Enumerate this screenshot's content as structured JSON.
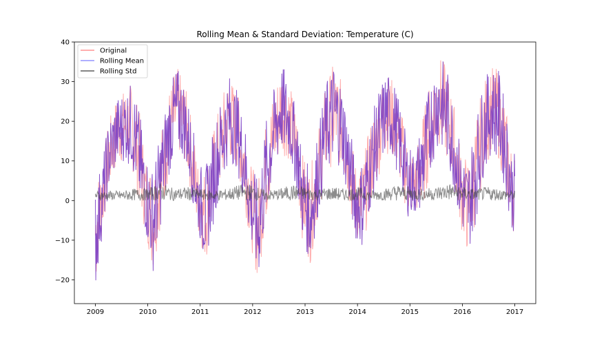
{
  "chart_data": {
    "type": "line",
    "title": "Rolling Mean & Standard Deviation: Temperature (C)",
    "xlabel": "",
    "ylabel": "",
    "xlim": [
      2008.6,
      2017.4
    ],
    "ylim": [
      -26,
      40
    ],
    "x_ticks": [
      2009,
      2010,
      2011,
      2012,
      2013,
      2014,
      2015,
      2016,
      2017
    ],
    "x_tick_labels": [
      "2009",
      "2010",
      "2011",
      "2012",
      "2013",
      "2014",
      "2015",
      "2016",
      "2017"
    ],
    "y_ticks": [
      -20,
      -10,
      0,
      10,
      20,
      30,
      40
    ],
    "y_tick_labels": [
      "−20",
      "−10",
      "0",
      "10",
      "20",
      "30",
      "40"
    ],
    "grid": false,
    "legend": {
      "position": "top-left",
      "entries": [
        "Original",
        "Rolling Mean",
        "Rolling Std"
      ]
    },
    "series": [
      {
        "name": "Original",
        "color": "#ff6666",
        "x": [
          2009.0,
          2009.12,
          2009.25,
          2009.4,
          2009.55,
          2009.7,
          2009.85,
          2009.95,
          2010.1,
          2010.25,
          2010.4,
          2010.55,
          2010.7,
          2010.85,
          2010.95,
          2011.1,
          2011.25,
          2011.4,
          2011.55,
          2011.7,
          2011.85,
          2011.95,
          2012.1,
          2012.25,
          2012.4,
          2012.55,
          2012.7,
          2012.85,
          2012.95,
          2013.1,
          2013.25,
          2013.4,
          2013.55,
          2013.7,
          2013.85,
          2013.95,
          2014.1,
          2014.25,
          2014.4,
          2014.55,
          2014.7,
          2014.85,
          2014.95,
          2015.1,
          2015.25,
          2015.4,
          2015.55,
          2015.7,
          2015.85,
          2015.95,
          2016.1,
          2016.25,
          2016.4,
          2016.55,
          2016.7,
          2016.85,
          2016.95
        ],
        "hi": [
          6,
          9,
          20,
          26,
          28,
          30,
          22,
          12,
          8,
          18,
          28,
          34,
          30,
          20,
          10,
          8,
          18,
          26,
          32,
          28,
          20,
          10,
          5,
          20,
          28,
          35,
          30,
          22,
          12,
          8,
          18,
          30,
          35,
          30,
          20,
          10,
          10,
          20,
          28,
          33,
          30,
          22,
          15,
          12,
          22,
          31,
          37,
          34,
          24,
          15,
          10,
          20,
          30,
          34,
          33,
          22,
          12
        ],
        "lo": [
          -23,
          -10,
          2,
          8,
          10,
          8,
          -2,
          -8,
          -18,
          -6,
          6,
          12,
          10,
          0,
          -8,
          -16,
          -6,
          4,
          10,
          8,
          -2,
          -10,
          -21,
          -6,
          6,
          12,
          10,
          2,
          -10,
          -16,
          -4,
          6,
          10,
          8,
          -2,
          -10,
          -12,
          -2,
          6,
          12,
          10,
          2,
          -4,
          -4,
          -2,
          8,
          14,
          10,
          2,
          -6,
          -14,
          -6,
          6,
          12,
          10,
          0,
          -8
        ]
      },
      {
        "name": "Rolling Mean",
        "color": "#7b3fc4",
        "x": [
          2009.0,
          2009.12,
          2009.25,
          2009.4,
          2009.55,
          2009.7,
          2009.85,
          2009.95,
          2010.1,
          2010.25,
          2010.4,
          2010.55,
          2010.7,
          2010.85,
          2010.95,
          2011.1,
          2011.25,
          2011.4,
          2011.55,
          2011.7,
          2011.85,
          2011.95,
          2012.1,
          2012.25,
          2012.4,
          2012.55,
          2012.7,
          2012.85,
          2012.95,
          2013.1,
          2013.25,
          2013.4,
          2013.55,
          2013.7,
          2013.85,
          2013.95,
          2014.1,
          2014.25,
          2014.4,
          2014.55,
          2014.7,
          2014.85,
          2014.95,
          2015.1,
          2015.25,
          2015.4,
          2015.55,
          2015.7,
          2015.85,
          2015.95,
          2016.1,
          2016.25,
          2016.4,
          2016.55,
          2016.7,
          2016.85,
          2016.95
        ],
        "hi": [
          6,
          9,
          20,
          26,
          28,
          30,
          22,
          12,
          8,
          18,
          28,
          34,
          30,
          20,
          10,
          8,
          18,
          26,
          32,
          28,
          20,
          10,
          5,
          20,
          28,
          35,
          30,
          22,
          12,
          8,
          18,
          30,
          35,
          30,
          20,
          10,
          10,
          20,
          28,
          33,
          30,
          22,
          15,
          12,
          22,
          31,
          37,
          34,
          24,
          15,
          10,
          20,
          30,
          34,
          33,
          22,
          12
        ],
        "lo": [
          -23,
          -10,
          2,
          8,
          10,
          8,
          -2,
          -8,
          -18,
          -6,
          6,
          12,
          10,
          0,
          -8,
          -16,
          -6,
          4,
          10,
          8,
          -2,
          -10,
          -21,
          -6,
          6,
          12,
          10,
          2,
          -10,
          -16,
          -4,
          6,
          10,
          8,
          -2,
          -10,
          -12,
          -2,
          6,
          12,
          10,
          2,
          -4,
          -4,
          -2,
          8,
          14,
          10,
          2,
          -6,
          -14,
          -6,
          6,
          12,
          10,
          0,
          -8
        ]
      },
      {
        "name": "Rolling Std",
        "color": "#404040",
        "x": [
          2009.0,
          2009.25,
          2009.5,
          2009.75,
          2010.0,
          2010.25,
          2010.5,
          2010.75,
          2011.0,
          2011.25,
          2011.5,
          2011.75,
          2012.0,
          2012.25,
          2012.5,
          2012.75,
          2013.0,
          2013.25,
          2013.5,
          2013.75,
          2014.0,
          2014.25,
          2014.5,
          2014.75,
          2015.0,
          2015.25,
          2015.5,
          2015.75,
          2016.0,
          2016.25,
          2016.5,
          2016.75,
          2017.0
        ],
        "hi": [
          2.5,
          2.5,
          2.5,
          3,
          3,
          4.5,
          3,
          3.5,
          3,
          2.5,
          3,
          4,
          4,
          2.5,
          3,
          4,
          3.5,
          3,
          3.5,
          3,
          3.5,
          2.5,
          3,
          4,
          3.5,
          3,
          3.5,
          4.5,
          3.5,
          3,
          3.5,
          3,
          2.5
        ],
        "lo": [
          0,
          0,
          0,
          0,
          0,
          0,
          0,
          0,
          0,
          0,
          0,
          0,
          0,
          0,
          0,
          0,
          0,
          0,
          0,
          0,
          0,
          0,
          0,
          0,
          0,
          0,
          0,
          0,
          0,
          0,
          0,
          0,
          0
        ]
      }
    ]
  }
}
